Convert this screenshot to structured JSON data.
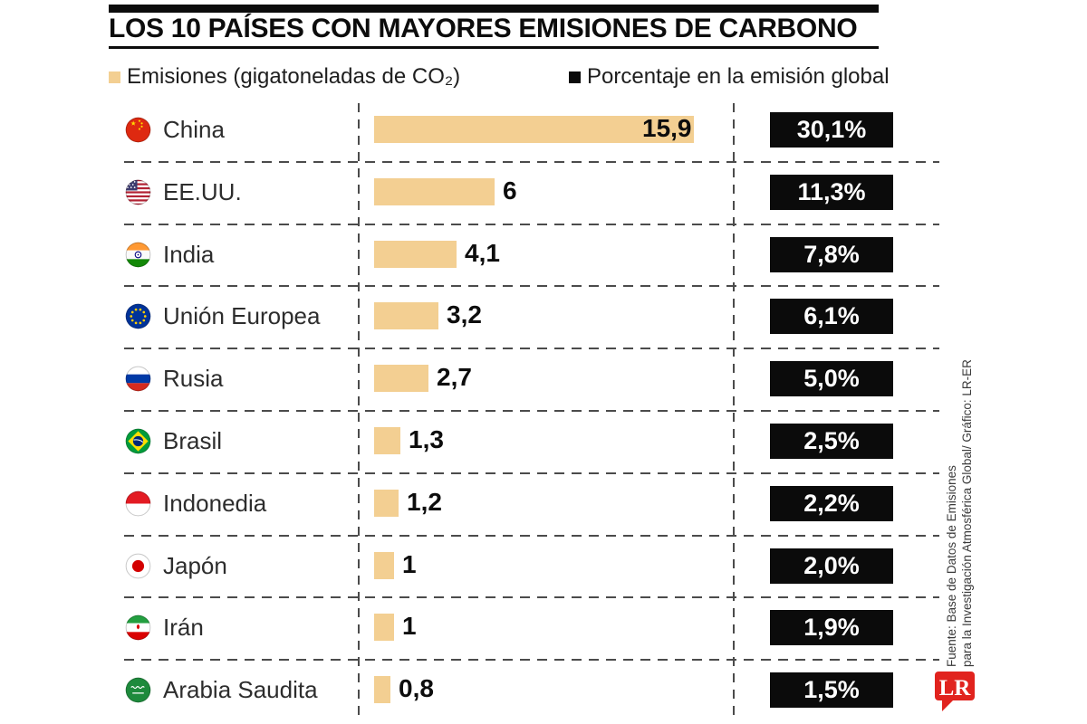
{
  "title": "LOS 10 PAÍSES CON MAYORES EMISIONES DE CARBONO",
  "legend": [
    {
      "label": "Emisiones (gigatoneladas de CO₂)",
      "color": "#F3CF92"
    },
    {
      "label": "Porcentaje en la emisión global",
      "color": "#0B0B0B"
    }
  ],
  "chart_data": {
    "type": "bar",
    "orientation": "horizontal",
    "title": "LOS 10 PAÍSES CON MAYORES EMISIONES DE CARBONO",
    "categories": [
      "China",
      "EE.UU.",
      "India",
      "Unión Europea",
      "Rusia",
      "Brasil",
      "Indonedia",
      "Japón",
      "Irán",
      "Arabia Saudita"
    ],
    "series": [
      {
        "name": "Emisiones (gigatoneladas de CO₂)",
        "values": [
          15.9,
          6,
          4.1,
          3.2,
          2.7,
          1.3,
          1.2,
          1,
          1,
          0.8
        ]
      },
      {
        "name": "Porcentaje en la emisión global (%)",
        "values": [
          30.1,
          11.3,
          7.8,
          6.1,
          5.0,
          2.5,
          2.2,
          2.0,
          1.9,
          1.5
        ]
      }
    ],
    "value_labels": [
      "15,9",
      "6",
      "4,1",
      "3,2",
      "2,7",
      "1,3",
      "1,2",
      "1",
      "1",
      "0,8"
    ],
    "percent_labels": [
      "30,1%",
      "11,3%",
      "7,8%",
      "6,1%",
      "5,0%",
      "2,5%",
      "2,2%",
      "2,0%",
      "1,9%",
      "1,5%"
    ],
    "legend_position": "top",
    "grid": "dashed row separators, two dashed vertical rules",
    "xlim": [
      0,
      16.5
    ]
  },
  "rows": [
    {
      "country": "China",
      "flag": "cn",
      "flag_icon": "flag-china-icon",
      "emissions": "15,9",
      "emissions_value": 15.9,
      "percent": "30,1%",
      "value_inside": true
    },
    {
      "country": "EE.UU.",
      "flag": "us",
      "flag_icon": "flag-usa-icon",
      "emissions": "6",
      "emissions_value": 6,
      "percent": "11,3%",
      "value_inside": false
    },
    {
      "country": "India",
      "flag": "in",
      "flag_icon": "flag-india-icon",
      "emissions": "4,1",
      "emissions_value": 4.1,
      "percent": "7,8%",
      "value_inside": false
    },
    {
      "country": "Unión Europea",
      "flag": "eu",
      "flag_icon": "flag-eu-icon",
      "emissions": "3,2",
      "emissions_value": 3.2,
      "percent": "6,1%",
      "value_inside": false
    },
    {
      "country": "Rusia",
      "flag": "ru",
      "flag_icon": "flag-russia-icon",
      "emissions": "2,7",
      "emissions_value": 2.7,
      "percent": "5,0%",
      "value_inside": false
    },
    {
      "country": "Brasil",
      "flag": "br",
      "flag_icon": "flag-brazil-icon",
      "emissions": "1,3",
      "emissions_value": 1.3,
      "percent": "2,5%",
      "value_inside": false
    },
    {
      "country": "Indonedia",
      "flag": "id",
      "flag_icon": "flag-indonesia-icon",
      "emissions": "1,2",
      "emissions_value": 1.2,
      "percent": "2,2%",
      "value_inside": false
    },
    {
      "country": "Japón",
      "flag": "jp",
      "flag_icon": "flag-japan-icon",
      "emissions": "1",
      "emissions_value": 1,
      "percent": "2,0%",
      "value_inside": false
    },
    {
      "country": "Irán",
      "flag": "ir",
      "flag_icon": "flag-iran-icon",
      "emissions": "1",
      "emissions_value": 1,
      "percent": "1,9%",
      "value_inside": false
    },
    {
      "country": "Arabia Saudita",
      "flag": "sa",
      "flag_icon": "flag-saudi-arabia-icon",
      "emissions": "0,8",
      "emissions_value": 0.8,
      "percent": "1,5%",
      "value_inside": false
    }
  ],
  "source": {
    "line1": "Fuente: Base de Datos de Emisiones",
    "line2": "para la Investigación Atmosférica Global/ Gráfico: LR-ER"
  },
  "logo_text": "LR",
  "colors": {
    "bar": "#F3CF92",
    "badge_bg": "#0B0B0B",
    "ink": "#0C0C0C",
    "dash": "#4B4B4B",
    "logo_red": "#E1231E"
  }
}
